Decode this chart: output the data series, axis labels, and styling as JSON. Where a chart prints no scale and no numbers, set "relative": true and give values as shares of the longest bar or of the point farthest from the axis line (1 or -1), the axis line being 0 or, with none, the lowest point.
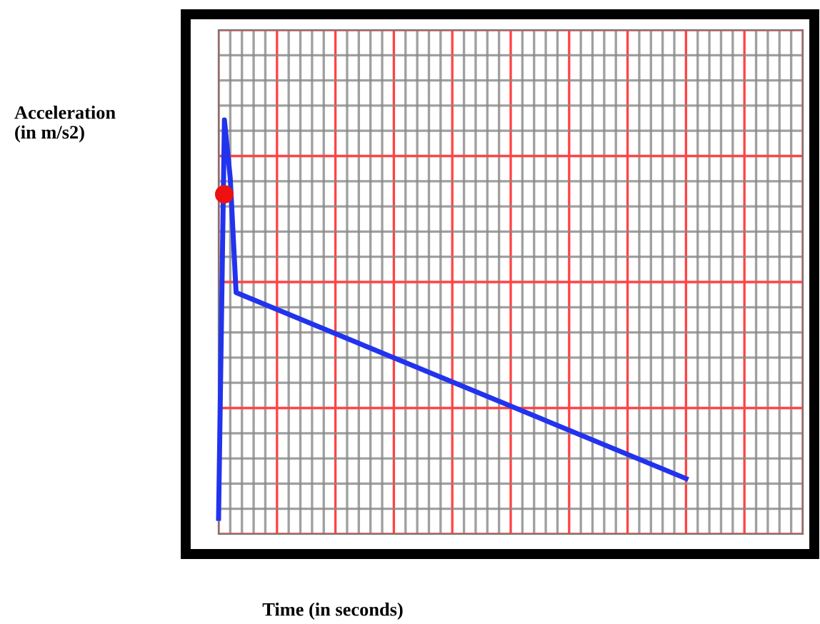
{
  "chart_data": {
    "type": "line",
    "xlabel": "Time (in seconds)",
    "annotations": [
      "Acceleration\n(in m/s2)"
    ],
    "relative": true,
    "grid": true,
    "categories": [
      null,
      null,
      null,
      null,
      null,
      null,
      null,
      null,
      null,
      null,
      null,
      null,
      null,
      null,
      null,
      null,
      null,
      null,
      null,
      null,
      null,
      null,
      null,
      null,
      null,
      null,
      null,
      null,
      null,
      null,
      null,
      null,
      null,
      null,
      null,
      null,
      null,
      null,
      null,
      null,
      null,
      null,
      null,
      null,
      null,
      null,
      null,
      null,
      null,
      null,
      null,
      null,
      null,
      null,
      null,
      null,
      null,
      null,
      null,
      null,
      null,
      null,
      null,
      null,
      null,
      null,
      null,
      null,
      null,
      null,
      null,
      null,
      null,
      null,
      null,
      null,
      null,
      null,
      null,
      null,
      null
    ],
    "series": [
      {
        "color": "#2233ee",
        "values": [
          0.038,
          1,
          0.859,
          0.583,
          null,
          null,
          null,
          null,
          null,
          null,
          null,
          null,
          null,
          null,
          null,
          null,
          null,
          null,
          null,
          null,
          null,
          null,
          null,
          null,
          null,
          null,
          null,
          null,
          null,
          null,
          null,
          null,
          null,
          null,
          null,
          null,
          null,
          null,
          null,
          null,
          null,
          null,
          null,
          null,
          null,
          null,
          null,
          null,
          null,
          null,
          null,
          null,
          null,
          null,
          null,
          null,
          null,
          null,
          null,
          null,
          null,
          null,
          null,
          null,
          null,
          null,
          null,
          null,
          null,
          null,
          null,
          null,
          null,
          null,
          null,
          null,
          null,
          null,
          null,
          null,
          0.134
        ]
      }
    ]
  }
}
